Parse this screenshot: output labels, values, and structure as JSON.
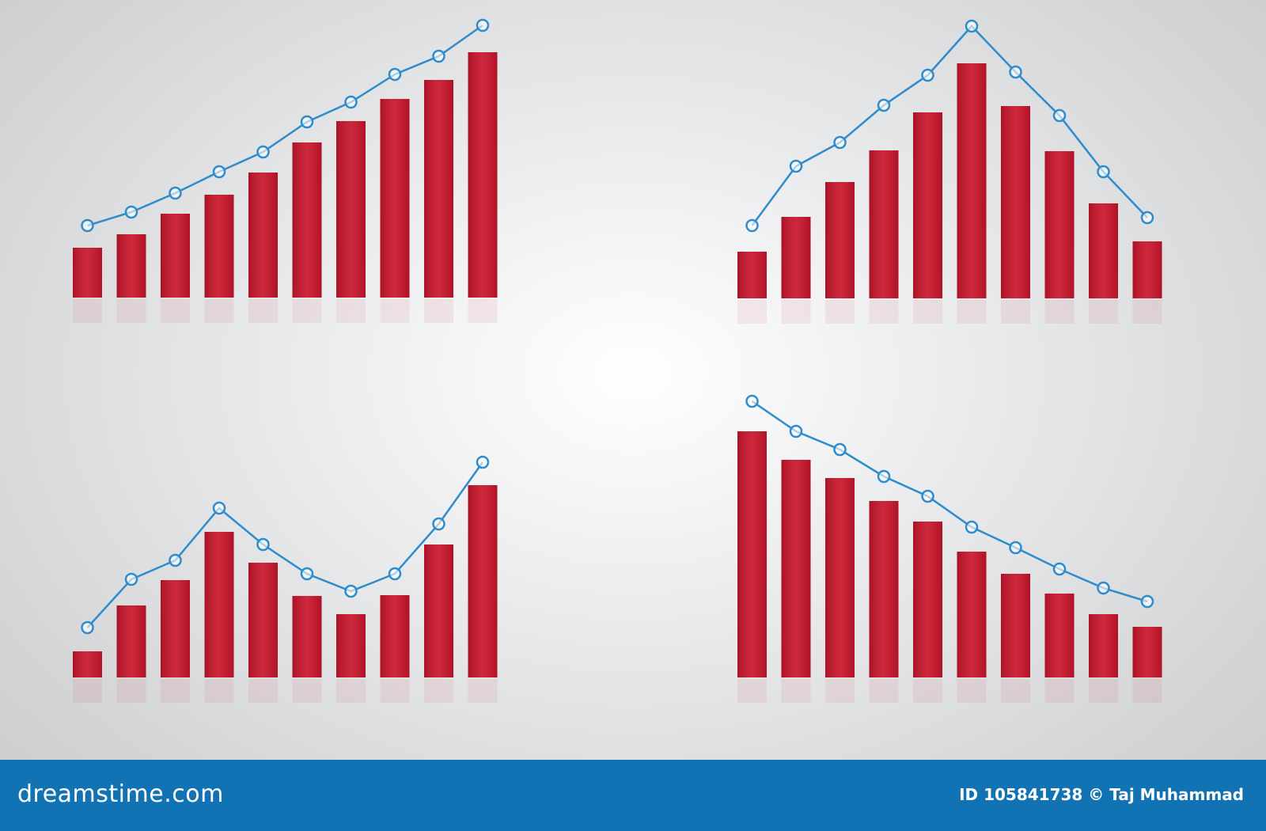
{
  "chart_data": [
    {
      "type": "bar",
      "ylim": [
        0,
        350
      ],
      "series": [
        {
          "color": "#c8142a",
          "values": [
            63,
            80,
            106,
            130,
            158,
            196,
            223,
            251,
            275,
            310
          ]
        },
        {
          "type": "line",
          "color": "#2f8ccb",
          "values": [
            91,
            108,
            132,
            159,
            184,
            222,
            247,
            282,
            305,
            344
          ]
        }
      ]
    },
    {
      "type": "bar",
      "ylim": [
        0,
        350
      ],
      "series": [
        {
          "color": "#c8142a",
          "values": [
            59,
            103,
            147,
            187,
            235,
            297,
            243,
            186,
            120,
            72
          ]
        },
        {
          "type": "line",
          "color": "#2f8ccb",
          "values": [
            92,
            167,
            197,
            244,
            282,
            344,
            286,
            231,
            160,
            102
          ]
        }
      ]
    },
    {
      "type": "bar",
      "ylim": [
        0,
        350
      ],
      "series": [
        {
          "color": "#c8142a",
          "values": [
            33,
            91,
            123,
            184,
            145,
            103,
            80,
            104,
            168,
            243
          ]
        },
        {
          "type": "line",
          "color": "#2f8ccb",
          "values": [
            63,
            124,
            148,
            214,
            168,
            131,
            109,
            131,
            194,
            272
          ]
        }
      ]
    },
    {
      "type": "bar",
      "ylim": [
        0,
        350
      ],
      "series": [
        {
          "color": "#c8142a",
          "values": [
            311,
            275,
            252,
            223,
            197,
            159,
            131,
            106,
            80,
            64
          ]
        },
        {
          "type": "line",
          "color": "#2f8ccb",
          "values": [
            349,
            311,
            288,
            254,
            229,
            190,
            164,
            137,
            113,
            96
          ]
        }
      ]
    }
  ],
  "footer": {
    "brand": "dreamstime.com",
    "credit": "ID 105841738 © Taj Muhammad"
  }
}
